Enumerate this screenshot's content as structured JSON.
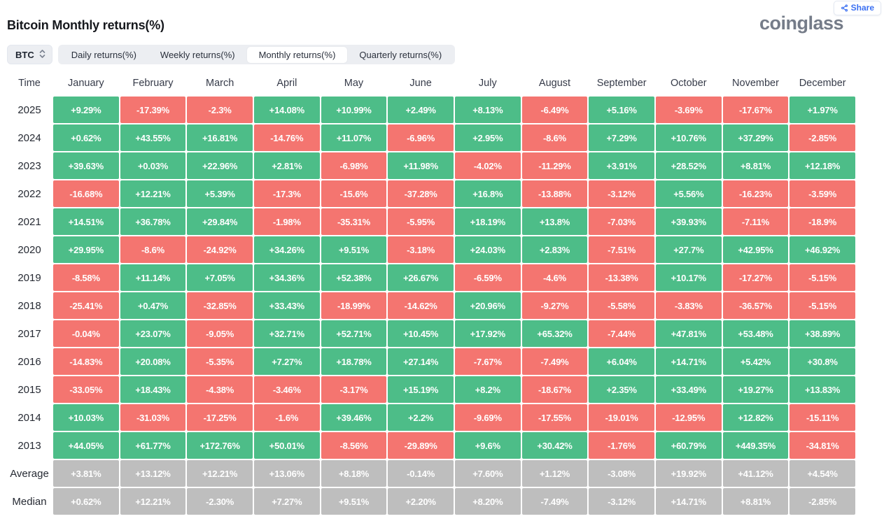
{
  "header": {
    "title": "Bitcoin Monthly returns(%)",
    "logo": "coinglass",
    "share_label": "Share"
  },
  "toolbar": {
    "coin": "BTC",
    "tabs": [
      "Daily returns(%)",
      "Weekly returns(%)",
      "Monthly returns(%)",
      "Quarterly returns(%)"
    ],
    "active_tab": "Monthly returns(%)"
  },
  "chart_data": {
    "type": "heatmap",
    "title": "Bitcoin Monthly returns(%)",
    "time_column_label": "Time",
    "columns": [
      "January",
      "February",
      "March",
      "April",
      "May",
      "June",
      "July",
      "August",
      "September",
      "October",
      "November",
      "December"
    ],
    "rows": [
      {
        "label": "2025",
        "summary": false,
        "values": [
          "+9.29%",
          "-17.39%",
          "-2.3%",
          "+14.08%",
          "+10.99%",
          "+2.49%",
          "+8.13%",
          "-6.49%",
          "+5.16%",
          "-3.69%",
          "-17.67%",
          "+1.97%"
        ]
      },
      {
        "label": "2024",
        "summary": false,
        "values": [
          "+0.62%",
          "+43.55%",
          "+16.81%",
          "-14.76%",
          "+11.07%",
          "-6.96%",
          "+2.95%",
          "-8.6%",
          "+7.29%",
          "+10.76%",
          "+37.29%",
          "-2.85%"
        ]
      },
      {
        "label": "2023",
        "summary": false,
        "values": [
          "+39.63%",
          "+0.03%",
          "+22.96%",
          "+2.81%",
          "-6.98%",
          "+11.98%",
          "-4.02%",
          "-11.29%",
          "+3.91%",
          "+28.52%",
          "+8.81%",
          "+12.18%"
        ]
      },
      {
        "label": "2022",
        "summary": false,
        "values": [
          "-16.68%",
          "+12.21%",
          "+5.39%",
          "-17.3%",
          "-15.6%",
          "-37.28%",
          "+16.8%",
          "-13.88%",
          "-3.12%",
          "+5.56%",
          "-16.23%",
          "-3.59%"
        ]
      },
      {
        "label": "2021",
        "summary": false,
        "values": [
          "+14.51%",
          "+36.78%",
          "+29.84%",
          "-1.98%",
          "-35.31%",
          "-5.95%",
          "+18.19%",
          "+13.8%",
          "-7.03%",
          "+39.93%",
          "-7.11%",
          "-18.9%"
        ]
      },
      {
        "label": "2020",
        "summary": false,
        "values": [
          "+29.95%",
          "-8.6%",
          "-24.92%",
          "+34.26%",
          "+9.51%",
          "-3.18%",
          "+24.03%",
          "+2.83%",
          "-7.51%",
          "+27.7%",
          "+42.95%",
          "+46.92%"
        ]
      },
      {
        "label": "2019",
        "summary": false,
        "values": [
          "-8.58%",
          "+11.14%",
          "+7.05%",
          "+34.36%",
          "+52.38%",
          "+26.67%",
          "-6.59%",
          "-4.6%",
          "-13.38%",
          "+10.17%",
          "-17.27%",
          "-5.15%"
        ]
      },
      {
        "label": "2018",
        "summary": false,
        "values": [
          "-25.41%",
          "+0.47%",
          "-32.85%",
          "+33.43%",
          "-18.99%",
          "-14.62%",
          "+20.96%",
          "-9.27%",
          "-5.58%",
          "-3.83%",
          "-36.57%",
          "-5.15%"
        ]
      },
      {
        "label": "2017",
        "summary": false,
        "values": [
          "-0.04%",
          "+23.07%",
          "-9.05%",
          "+32.71%",
          "+52.71%",
          "+10.45%",
          "+17.92%",
          "+65.32%",
          "-7.44%",
          "+47.81%",
          "+53.48%",
          "+38.89%"
        ]
      },
      {
        "label": "2016",
        "summary": false,
        "values": [
          "-14.83%",
          "+20.08%",
          "-5.35%",
          "+7.27%",
          "+18.78%",
          "+27.14%",
          "-7.67%",
          "-7.49%",
          "+6.04%",
          "+14.71%",
          "+5.42%",
          "+30.8%"
        ]
      },
      {
        "label": "2015",
        "summary": false,
        "values": [
          "-33.05%",
          "+18.43%",
          "-4.38%",
          "-3.46%",
          "-3.17%",
          "+15.19%",
          "+8.2%",
          "-18.67%",
          "+2.35%",
          "+33.49%",
          "+19.27%",
          "+13.83%"
        ]
      },
      {
        "label": "2014",
        "summary": false,
        "values": [
          "+10.03%",
          "-31.03%",
          "-17.25%",
          "-1.6%",
          "+39.46%",
          "+2.2%",
          "-9.69%",
          "-17.55%",
          "-19.01%",
          "-12.95%",
          "+12.82%",
          "-15.11%"
        ]
      },
      {
        "label": "2013",
        "summary": false,
        "values": [
          "+44.05%",
          "+61.77%",
          "+172.76%",
          "+50.01%",
          "-8.56%",
          "-29.89%",
          "+9.6%",
          "+30.42%",
          "-1.76%",
          "+60.79%",
          "+449.35%",
          "-34.81%"
        ]
      },
      {
        "label": "Average",
        "summary": true,
        "values": [
          "+3.81%",
          "+13.12%",
          "+12.21%",
          "+13.06%",
          "+8.18%",
          "-0.14%",
          "+7.60%",
          "+1.12%",
          "-3.08%",
          "+19.92%",
          "+41.12%",
          "+4.54%"
        ]
      },
      {
        "label": "Median",
        "summary": true,
        "values": [
          "+0.62%",
          "+12.21%",
          "-2.30%",
          "+7.27%",
          "+9.51%",
          "+2.20%",
          "+8.20%",
          "-7.49%",
          "-3.12%",
          "+14.71%",
          "+8.81%",
          "-2.85%"
        ]
      }
    ],
    "colors": {
      "positive": "#4dbd88",
      "negative": "#f47570",
      "summary": "#bebebe"
    },
    "legend_position": "none",
    "grid": false
  }
}
